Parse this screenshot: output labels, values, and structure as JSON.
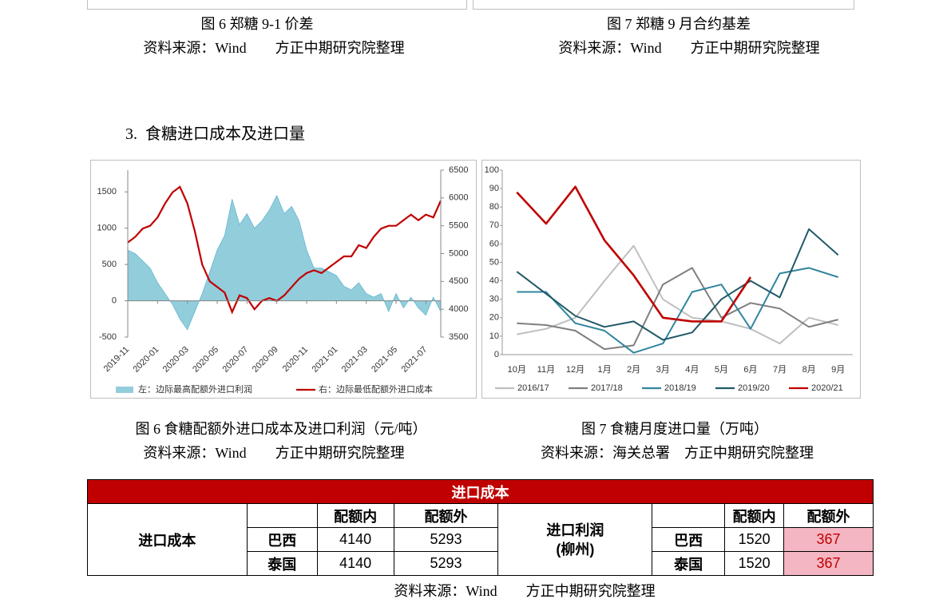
{
  "top_figures": [
    {
      "caption": "图 6 郑糖 9-1 价差",
      "source": "资料来源：Wind　　方正中期研究院整理"
    },
    {
      "caption": "图 7 郑糖 9 月合约基差",
      "source": "资料来源：Wind　　方正中期研究院整理"
    }
  ],
  "section_heading": "3.  食糖进口成本及进口量",
  "chart_data": [
    {
      "type": "combo",
      "categories": [
        "2019-11",
        null,
        null,
        null,
        "2020-01",
        null,
        null,
        null,
        "2020-03",
        null,
        null,
        null,
        "2020-05",
        null,
        null,
        null,
        "2020-07",
        null,
        null,
        null,
        "2020-09",
        null,
        null,
        null,
        "2020-11",
        null,
        null,
        null,
        "2021-01",
        null,
        null,
        null,
        "2021-03",
        null,
        null,
        null,
        "2021-05",
        null,
        null,
        null,
        "2021-07",
        null,
        null
      ],
      "ylim": [
        -500,
        1800
      ],
      "yticks": [
        -500,
        0,
        500,
        1000,
        1500
      ],
      "y2lim": [
        3500,
        6500
      ],
      "y2ticks": [
        3500,
        4000,
        4500,
        5000,
        5500,
        6000,
        6500
      ],
      "series": [
        {
          "name": "左：边际最高配额外进口利润",
          "type": "area",
          "color": "#92cddc",
          "values": [
            700,
            650,
            550,
            450,
            250,
            100,
            -50,
            -250,
            -400,
            -150,
            100,
            400,
            700,
            900,
            1400,
            1050,
            1200,
            1000,
            1100,
            1250,
            1450,
            1200,
            1300,
            1100,
            700,
            450,
            450,
            400,
            350,
            200,
            150,
            250,
            100,
            50,
            100,
            -150,
            100,
            -100,
            50,
            -100,
            -200,
            50,
            -150
          ]
        },
        {
          "name": "右：边际最低配额外进口成本",
          "type": "line",
          "axis": "y2",
          "color": "#c00000",
          "values": [
            5200,
            5300,
            5450,
            5500,
            5650,
            5900,
            6100,
            6200,
            5900,
            5400,
            4800,
            4500,
            4400,
            4300,
            3950,
            4250,
            4200,
            4000,
            4150,
            4200,
            4150,
            4250,
            4400,
            4550,
            4650,
            4700,
            4650,
            4750,
            4850,
            4950,
            4950,
            5150,
            5100,
            5300,
            5450,
            5500,
            5500,
            5600,
            5700,
            5600,
            5700,
            5650,
            5950
          ]
        }
      ]
    },
    {
      "type": "line",
      "categories": [
        "10月",
        "11月",
        "12月",
        "1月",
        "2月",
        "3月",
        "4月",
        "5月",
        "6月",
        "7月",
        "8月",
        "9月"
      ],
      "ylim": [
        0,
        100
      ],
      "yticks": [
        0,
        10,
        20,
        30,
        40,
        50,
        60,
        70,
        80,
        90,
        100
      ],
      "series": [
        {
          "name": "2016/17",
          "color": "#bfbfbf",
          "values": [
            11,
            14,
            20,
            40,
            59,
            30,
            20,
            18,
            14,
            6,
            20,
            16
          ]
        },
        {
          "name": "2017/18",
          "color": "#7f7f7f",
          "values": [
            17,
            16,
            13,
            3,
            5,
            38,
            47,
            20,
            28,
            25,
            15,
            19
          ]
        },
        {
          "name": "2018/19",
          "color": "#31859c",
          "values": [
            34,
            34,
            17,
            13,
            1,
            6,
            34,
            38,
            14,
            44,
            47,
            42
          ]
        },
        {
          "name": "2019/20",
          "color": "#215968",
          "values": [
            45,
            33,
            21,
            15,
            18,
            8,
            12,
            30,
            40,
            31,
            68,
            54
          ]
        },
        {
          "name": "2020/21",
          "color": "#c00000",
          "values": [
            88,
            71,
            91,
            62,
            43,
            20,
            18,
            18,
            42,
            null,
            null,
            null
          ]
        }
      ]
    }
  ],
  "bottom_figures": [
    {
      "caption": "图 6 食糖配额外进口成本及进口利润（元/吨）",
      "source": "资料来源：Wind　　方正中期研究院整理"
    },
    {
      "caption": "图 7 食糖月度进口量（万吨）",
      "source": "资料来源：海关总署　方正中期研究院整理"
    }
  ],
  "table": {
    "title": "进口成本",
    "left_label": "进口成本",
    "right_label": [
      "进口利润",
      "(柳州)"
    ],
    "headers": [
      "配额内",
      "配额外"
    ],
    "rows": [
      [
        "巴西",
        4140,
        5293,
        "巴西",
        1520,
        367
      ],
      [
        "泰国",
        4140,
        5293,
        "泰国",
        1520,
        367
      ]
    ]
  },
  "table_source": "资料来源：Wind　　方正中期研究院整理"
}
